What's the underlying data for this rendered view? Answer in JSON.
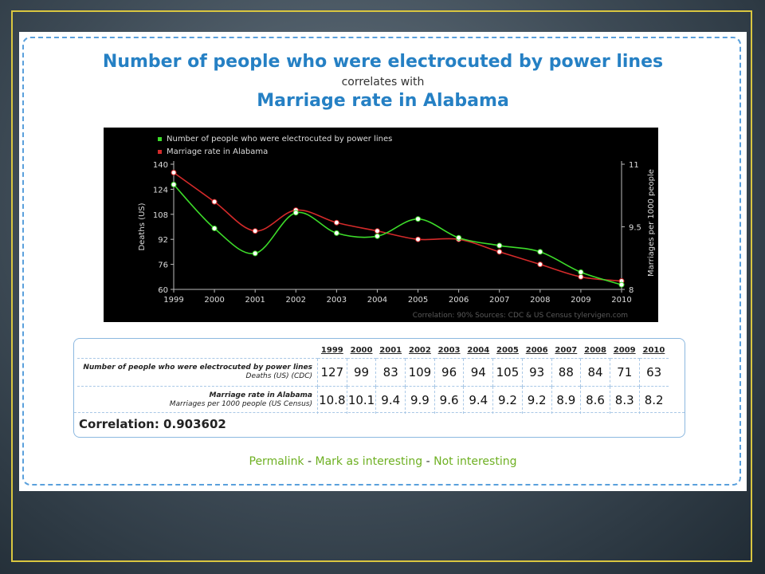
{
  "title_line1": "Number of people who were electrocuted by power lines",
  "title_line2": "correlates with",
  "title_line3": "Marriage rate in Alabama",
  "chart_data": {
    "type": "line",
    "x": [
      1999,
      2000,
      2001,
      2002,
      2003,
      2004,
      2005,
      2006,
      2007,
      2008,
      2009,
      2010
    ],
    "series": [
      {
        "name": "Number of people who were electrocuted by power lines",
        "axis": "left",
        "color": "#3ddc2a",
        "values": [
          127,
          99,
          83,
          109,
          96,
          94,
          105,
          93,
          88,
          84,
          71,
          63
        ]
      },
      {
        "name": "Marriage rate in Alabama",
        "axis": "right",
        "color": "#d42a2a",
        "values": [
          10.8,
          10.1,
          9.4,
          9.9,
          9.6,
          9.4,
          9.2,
          9.2,
          8.9,
          8.6,
          8.3,
          8.2
        ]
      }
    ],
    "ylabel": "Deaths (US)",
    "ylabel_right": "Marriages per 1000 people",
    "ylim": [
      60,
      140
    ],
    "yticks": [
      60,
      76,
      92,
      108,
      124,
      140
    ],
    "ylim_right": [
      8,
      11
    ],
    "yticks_right": [
      "8",
      "9.5",
      "11"
    ],
    "xticks": [
      "1999",
      "2000",
      "2001",
      "2002",
      "2003",
      "2004",
      "2005",
      "2006",
      "2007",
      "2008",
      "2009",
      "2010"
    ],
    "footer_text": "Correlation: 90%     Sources: CDC & US Census   tylervigen.com",
    "legend_position": "top-left",
    "background": "#000000"
  },
  "table": {
    "years": [
      "1999",
      "2000",
      "2001",
      "2002",
      "2003",
      "2004",
      "2005",
      "2006",
      "2007",
      "2008",
      "2009",
      "2010"
    ],
    "row1_title": "Number of people who were electrocuted by power lines",
    "row1_sub": "Deaths (US) (CDC)",
    "row1_values": [
      "127",
      "99",
      "83",
      "109",
      "96",
      "94",
      "105",
      "93",
      "88",
      "84",
      "71",
      "63"
    ],
    "row2_title": "Marriage rate in Alabama",
    "row2_sub": "Marriages per 1000 people (US Census)",
    "row2_values": [
      "10.8",
      "10.1",
      "9.4",
      "9.9",
      "9.6",
      "9.4",
      "9.2",
      "9.2",
      "8.9",
      "8.6",
      "8.3",
      "8.2"
    ],
    "correlation": "Correlation: 0.903602"
  },
  "links": {
    "permalink": "Permalink",
    "separator": "-",
    "interesting": "Mark as interesting",
    "not_interesting": "Not interesting"
  }
}
